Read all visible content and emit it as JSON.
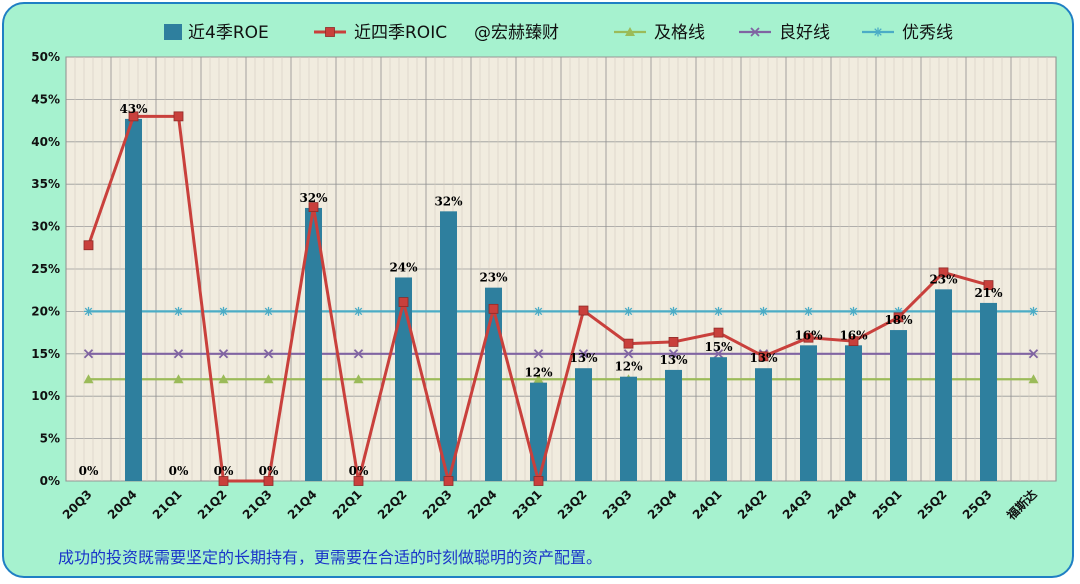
{
  "chart_data": {
    "type": "bar+line",
    "categories": [
      "20Q3",
      "20Q4",
      "21Q1",
      "21Q2",
      "21Q3",
      "21Q4",
      "22Q1",
      "22Q2",
      "22Q3",
      "22Q4",
      "23Q1",
      "23Q2",
      "23Q3",
      "23Q4",
      "24Q1",
      "24Q2",
      "24Q3",
      "24Q4",
      "25Q1",
      "25Q2",
      "25Q3",
      "福斯达"
    ],
    "ylim": [
      0,
      50
    ],
    "yticks": [
      "0%",
      "5%",
      "10%",
      "15%",
      "20%",
      "25%",
      "30%",
      "35%",
      "40%",
      "45%",
      "50%"
    ],
    "grid": true,
    "legend_position": "top",
    "series": [
      {
        "name": "近4季ROE",
        "kind": "bar",
        "color": "#2e7f9e",
        "values": [
          0,
          42.7,
          0,
          0,
          0,
          32.2,
          0,
          24.0,
          31.8,
          22.8,
          11.6,
          13.3,
          12.3,
          13.1,
          14.6,
          13.3,
          16.0,
          16.0,
          17.8,
          22.6,
          21.0,
          null
        ],
        "labels": [
          "0%",
          "43%",
          "0%",
          "0%",
          "0%",
          "32%",
          "0%",
          "24%",
          "32%",
          "23%",
          "12%",
          "13%",
          "12%",
          "13%",
          "15%",
          "13%",
          "16%",
          "16%",
          "18%",
          "23%",
          "21%",
          ""
        ]
      },
      {
        "name": "近四季ROIC",
        "kind": "line",
        "color": "#c9403c",
        "marker": "square",
        "values": [
          27.8,
          43.0,
          43.0,
          0,
          0,
          32.3,
          0,
          21.1,
          0,
          20.3,
          0,
          20.1,
          16.2,
          16.4,
          17.5,
          14.7,
          16.9,
          16.5,
          19.3,
          24.6,
          23.1,
          null
        ]
      },
      {
        "name": "及格线",
        "kind": "line",
        "color": "#9bbb59",
        "marker": "triangle",
        "values": [
          12,
          12,
          12,
          12,
          12,
          12,
          12,
          12,
          12,
          12,
          12,
          12,
          12,
          12,
          12,
          12,
          12,
          12,
          12,
          12,
          12,
          12
        ]
      },
      {
        "name": "良好线",
        "kind": "line",
        "color": "#8064a2",
        "marker": "x",
        "values": [
          15,
          15,
          15,
          15,
          15,
          15,
          15,
          15,
          15,
          15,
          15,
          15,
          15,
          15,
          15,
          15,
          15,
          15,
          15,
          15,
          15,
          15
        ]
      },
      {
        "name": "优秀线",
        "kind": "line",
        "color": "#4bacc6",
        "marker": "star",
        "values": [
          20,
          20,
          20,
          20,
          20,
          20,
          20,
          20,
          20,
          20,
          20,
          20,
          20,
          20,
          20,
          20,
          20,
          20,
          20,
          20,
          20,
          20
        ]
      }
    ],
    "watermark": "@宏赫臻财",
    "footer": "成功的投资既需要坚定的长期持有，更需要在合适的时刻做聪明的资产配置。"
  }
}
